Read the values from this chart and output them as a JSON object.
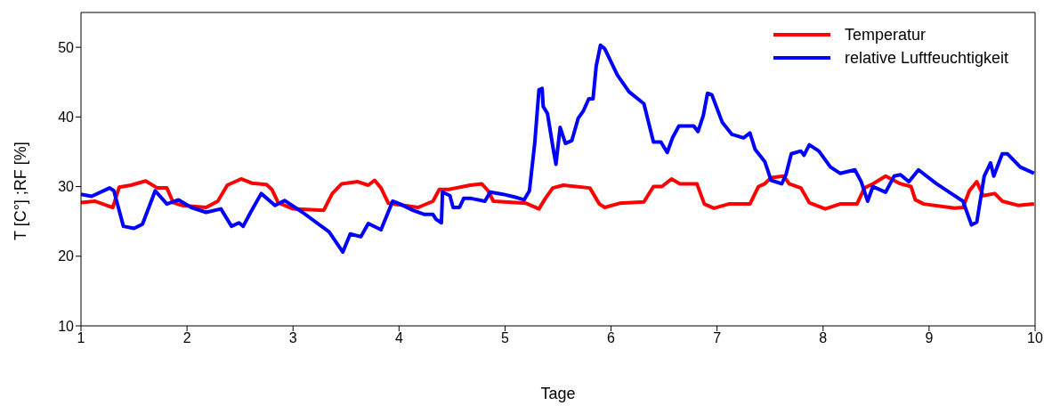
{
  "chart_data": {
    "type": "line",
    "xlabel": "Tage",
    "ylabel": "T [C°] ;RF [%]",
    "xlim": [
      1,
      10
    ],
    "xticks": [
      1,
      2,
      3,
      4,
      5,
      6,
      7,
      8,
      9,
      10
    ],
    "ylim": [
      10,
      55
    ],
    "yticks": [
      10,
      20,
      30,
      40,
      50
    ],
    "grid": false,
    "legend": "top right",
    "marker": "none",
    "line_style": "solid",
    "series": [
      {
        "name": "Temperatur",
        "color": "#ff0000",
        "x": [
          1.0,
          1.13,
          1.3,
          1.36,
          1.47,
          1.61,
          1.72,
          1.81,
          1.87,
          1.95,
          2.18,
          2.29,
          2.38,
          2.51,
          2.61,
          2.75,
          2.8,
          2.86,
          3.0,
          3.29,
          3.37,
          3.46,
          3.61,
          3.71,
          3.77,
          3.83,
          3.9,
          4.18,
          4.32,
          4.38,
          4.47,
          4.67,
          4.78,
          4.84,
          4.89,
          5.2,
          5.32,
          5.38,
          5.45,
          5.55,
          5.8,
          5.89,
          5.94,
          6.08,
          6.31,
          6.4,
          6.48,
          6.57,
          6.65,
          6.81,
          6.88,
          6.97,
          7.11,
          7.31,
          7.39,
          7.45,
          7.51,
          7.63,
          7.68,
          7.79,
          7.87,
          8.02,
          8.16,
          8.32,
          8.39,
          8.47,
          8.59,
          8.73,
          8.83,
          8.87,
          8.95,
          9.24,
          9.32,
          9.38,
          9.45,
          9.51,
          9.62,
          9.69,
          9.84,
          9.99
        ],
        "values": [
          27.7,
          27.9,
          27.0,
          29.9,
          30.2,
          30.8,
          29.8,
          29.8,
          27.7,
          27.3,
          27.0,
          27.9,
          30.2,
          31.1,
          30.5,
          30.3,
          29.6,
          27.7,
          26.8,
          26.6,
          29.0,
          30.4,
          30.7,
          30.2,
          30.9,
          29.8,
          27.6,
          27.0,
          27.9,
          29.6,
          29.6,
          30.2,
          30.4,
          29.4,
          27.9,
          27.6,
          26.8,
          28.3,
          29.8,
          30.2,
          29.8,
          27.5,
          27.0,
          27.6,
          27.8,
          30.0,
          30.0,
          31.1,
          30.4,
          30.4,
          27.5,
          26.9,
          27.5,
          27.5,
          30.0,
          30.4,
          31.3,
          31.5,
          30.4,
          29.8,
          27.7,
          26.8,
          27.5,
          27.5,
          29.8,
          30.4,
          31.5,
          30.4,
          30.0,
          28.1,
          27.5,
          26.9,
          27.0,
          29.4,
          30.7,
          28.7,
          29.0,
          27.9,
          27.3,
          27.5
        ]
      },
      {
        "name": "relative Luftfeuchtigkeit",
        "color": "#0000ff",
        "x": [
          1.0,
          1.1,
          1.27,
          1.31,
          1.4,
          1.5,
          1.58,
          1.7,
          1.81,
          1.92,
          2.04,
          2.18,
          2.32,
          2.42,
          2.49,
          2.53,
          2.6,
          2.7,
          2.83,
          2.92,
          3.09,
          3.34,
          3.47,
          3.54,
          3.64,
          3.71,
          3.83,
          3.94,
          4.01,
          4.13,
          4.24,
          4.32,
          4.35,
          4.4,
          4.41,
          4.48,
          4.51,
          4.57,
          4.61,
          4.68,
          4.81,
          4.86,
          4.98,
          5.09,
          5.18,
          5.23,
          5.28,
          5.32,
          5.35,
          5.36,
          5.4,
          5.45,
          5.48,
          5.52,
          5.57,
          5.63,
          5.69,
          5.74,
          5.79,
          5.83,
          5.86,
          5.9,
          5.94,
          6.06,
          6.17,
          6.31,
          6.4,
          6.47,
          6.53,
          6.58,
          6.64,
          6.78,
          6.82,
          6.87,
          6.91,
          6.95,
          7.05,
          7.14,
          7.25,
          7.31,
          7.36,
          7.45,
          7.51,
          7.61,
          7.65,
          7.7,
          7.79,
          7.82,
          7.87,
          7.96,
          8.07,
          8.16,
          8.3,
          8.36,
          8.42,
          8.47,
          8.59,
          8.67,
          8.73,
          8.81,
          8.9,
          9.07,
          9.21,
          9.32,
          9.4,
          9.45,
          9.52,
          9.58,
          9.61,
          9.69,
          9.74,
          9.86,
          9.99
        ],
        "values": [
          28.9,
          28.6,
          29.8,
          29.4,
          24.3,
          24.0,
          24.6,
          29.4,
          27.5,
          28.1,
          27.0,
          26.3,
          26.8,
          24.3,
          24.8,
          24.3,
          26.3,
          29.0,
          27.3,
          28.0,
          26.3,
          23.5,
          20.6,
          23.2,
          22.8,
          24.7,
          23.8,
          27.9,
          27.5,
          26.6,
          26.0,
          26.0,
          25.3,
          24.8,
          29.2,
          28.7,
          27.0,
          27.0,
          28.3,
          28.3,
          27.9,
          29.2,
          28.9,
          28.5,
          28.1,
          29.4,
          36.2,
          43.9,
          44.1,
          41.5,
          40.5,
          35.8,
          33.2,
          38.5,
          36.2,
          36.6,
          39.8,
          40.9,
          42.6,
          42.6,
          47.3,
          50.3,
          49.8,
          46.0,
          43.6,
          41.9,
          36.4,
          36.4,
          34.9,
          37.0,
          38.7,
          38.7,
          37.9,
          40.2,
          43.4,
          43.2,
          39.2,
          37.5,
          37.0,
          37.7,
          35.3,
          33.6,
          30.9,
          30.4,
          31.7,
          34.7,
          35.1,
          34.5,
          36.0,
          35.1,
          32.8,
          31.9,
          32.4,
          30.7,
          27.9,
          30.0,
          29.2,
          31.5,
          31.7,
          30.7,
          32.4,
          30.4,
          29.0,
          27.9,
          24.5,
          24.9,
          31.5,
          33.4,
          31.5,
          34.7,
          34.7,
          32.8,
          31.9
        ]
      }
    ]
  }
}
